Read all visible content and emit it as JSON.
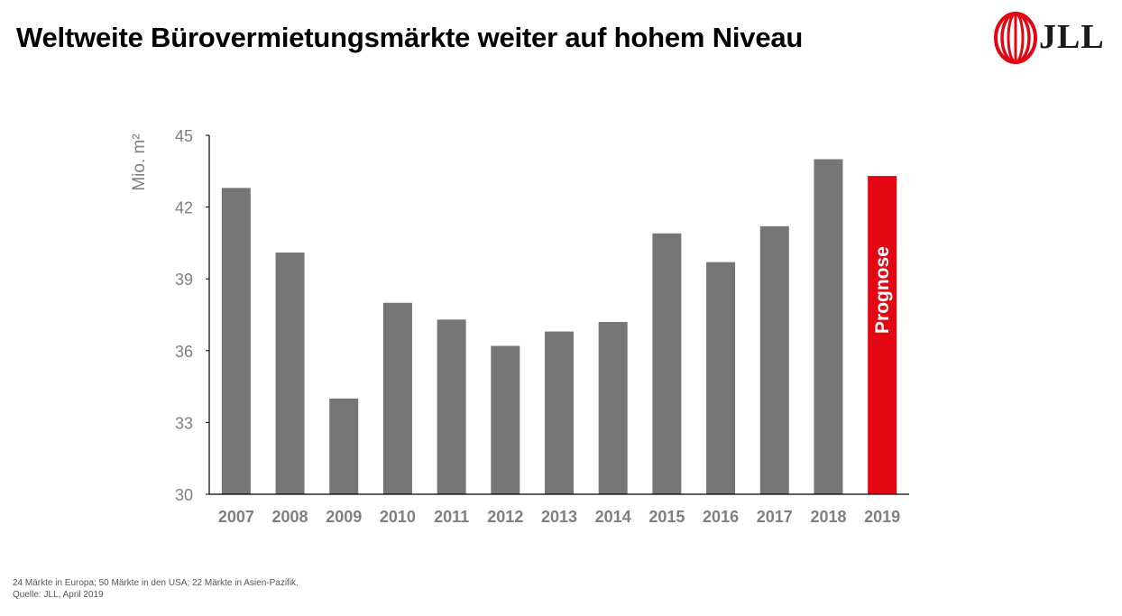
{
  "header": {
    "title": "Weltweite Bürovermietungsmärkte weiter auf hohem Niveau",
    "logo_text": "JLL"
  },
  "colors": {
    "bar": "#767676",
    "forecast_bar": "#e30613",
    "axis": "#000000",
    "tick_text": "#7f7f7f",
    "logo_red": "#e30613"
  },
  "chart_data": {
    "type": "bar",
    "title": "Weltweite Bürovermietungsmärkte weiter auf hohem Niveau",
    "ylabel": "Mio. m²",
    "xlabel": "",
    "ylim": [
      30,
      45
    ],
    "yticks": [
      30,
      33,
      36,
      39,
      42,
      45
    ],
    "grid": false,
    "categories": [
      "2007",
      "2008",
      "2009",
      "2010",
      "2011",
      "2012",
      "2013",
      "2014",
      "2015",
      "2016",
      "2017",
      "2018",
      "2019"
    ],
    "values": [
      42.8,
      40.1,
      34.0,
      38.0,
      37.3,
      36.2,
      36.8,
      37.2,
      40.9,
      39.7,
      41.2,
      44.0,
      43.3
    ],
    "highlight_index": 12,
    "highlight_label": "Prognose"
  },
  "footnotes": {
    "markets": "24 Märkte in Europa; 50 Märkte in den USA; 22 Märkte in Asien-Pazifik.",
    "source": "Quelle: JLL, April 2019"
  }
}
